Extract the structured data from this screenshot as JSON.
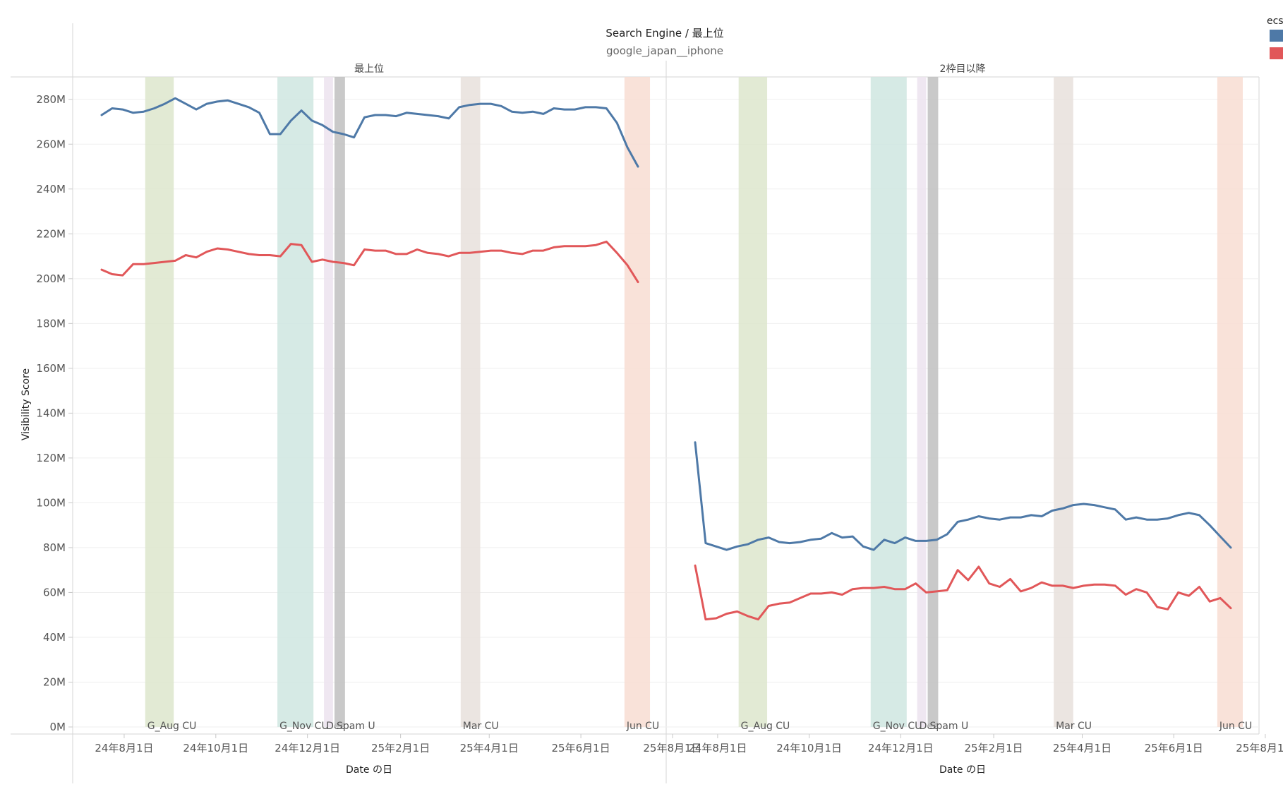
{
  "header": {
    "title": "Search Engine / 最上位",
    "subtitle": "google_japan__iphone"
  },
  "legend": {
    "title": "ecs",
    "colors": [
      "#4e79a7",
      "#e15759"
    ]
  },
  "chart_data": {
    "type": "line",
    "ylabel": "Visibility Score",
    "xlabel": "Date の日",
    "ylim": [
      0,
      290
    ],
    "yunit": "M",
    "y_ticks": [
      "0M",
      "20M",
      "40M",
      "60M",
      "80M",
      "100M",
      "120M",
      "140M",
      "160M",
      "180M",
      "200M",
      "220M",
      "240M",
      "260M",
      "280M"
    ],
    "x_ticks": [
      "24年8月1日",
      "24年10月1日",
      "24年12月1日",
      "25年2月1日",
      "25年4月1日",
      "25年6月1日",
      "25年8月1日"
    ],
    "x_start": "2024-07-17",
    "x_step_days": 7,
    "grid": true,
    "bands": [
      {
        "label": "G_Aug CU",
        "color": "#dde6cd",
        "start": "2024-08-15",
        "end": "2024-09-03"
      },
      {
        "label": "G_Nov CU",
        "color": "#cfe6e1",
        "start": "2024-11-11",
        "end": "2024-12-05"
      },
      {
        "label": "Dec",
        "color": "#ece3ee",
        "start": "2024-12-12",
        "end": "2024-12-18"
      },
      {
        "label": "Spam U",
        "color": "#bfbfbf",
        "start": "2024-12-19",
        "end": "2024-12-26"
      },
      {
        "label": "Mar CU",
        "color": "#e7e1dc",
        "start": "2025-03-13",
        "end": "2025-03-26"
      },
      {
        "label": "Jun CU",
        "color": "#f8ddd2",
        "start": "2025-06-30",
        "end": "2025-07-17"
      }
    ],
    "panels": [
      {
        "title": "最上位",
        "series": [
          {
            "color": "#4e79a7",
            "values": [
              273,
              276,
              275.5,
              274,
              274.5,
              276,
              278,
              280.5,
              278,
              275.5,
              278,
              279,
              279.5,
              278,
              276.5,
              274,
              264.5,
              264.5,
              270.5,
              275,
              270.5,
              268.5,
              265.5,
              264.5,
              263,
              272,
              273,
              273,
              272.5,
              274,
              273.5,
              273,
              272.5,
              271.5,
              276.5,
              277.5,
              278,
              278,
              277,
              274.5,
              274,
              274.5,
              273.5,
              276,
              275.5,
              275.5,
              276.5,
              276.5,
              276,
              269.5,
              258.5,
              250
            ]
          },
          {
            "color": "#e15759",
            "values": [
              204,
              202,
              201.5,
              206.5,
              206.5,
              207,
              207.5,
              208,
              210.5,
              209.5,
              212,
              213.5,
              213,
              212,
              211,
              210.5,
              210.5,
              210,
              215.5,
              215,
              207.5,
              208.5,
              207.5,
              207,
              206,
              213,
              212.5,
              212.5,
              211,
              211,
              213,
              211.5,
              211,
              210,
              211.5,
              211.5,
              212,
              212.5,
              212.5,
              211.5,
              211,
              212.5,
              212.5,
              214,
              214.5,
              214.5,
              214.5,
              215,
              216.5,
              211.5,
              206,
              198.5
            ]
          }
        ]
      },
      {
        "title": "2枠目以降",
        "series": [
          {
            "color": "#4e79a7",
            "values": [
              127,
              82,
              80.5,
              79,
              80.5,
              81.5,
              83.5,
              84.5,
              82.5,
              82,
              82.5,
              83.5,
              84,
              86.5,
              84.5,
              85,
              80.5,
              79,
              83.5,
              82,
              84.5,
              83,
              83,
              83.5,
              86,
              91.5,
              92.5,
              94,
              93,
              92.5,
              93.5,
              93.5,
              94.5,
              94,
              96.5,
              97.5,
              99,
              99.5,
              99,
              98,
              97,
              92.5,
              93.5,
              92.5,
              92.5,
              93,
              94.5,
              95.5,
              94.5,
              90,
              85,
              80
            ]
          },
          {
            "color": "#e15759",
            "values": [
              72,
              48,
              48.5,
              50.5,
              51.5,
              49.5,
              48,
              54,
              55,
              55.5,
              57.5,
              59.5,
              59.5,
              60,
              59,
              61.5,
              62,
              62,
              62.5,
              61.5,
              61.5,
              64,
              60,
              60.5,
              61,
              70,
              65.5,
              71.5,
              64,
              62.5,
              66,
              60.5,
              62,
              64.5,
              63,
              63,
              62,
              63,
              63.5,
              63.5,
              63,
              59,
              61.5,
              60,
              53.5,
              52.5,
              60,
              58.5,
              62.5,
              56,
              57.5,
              53
            ]
          }
        ]
      }
    ]
  }
}
